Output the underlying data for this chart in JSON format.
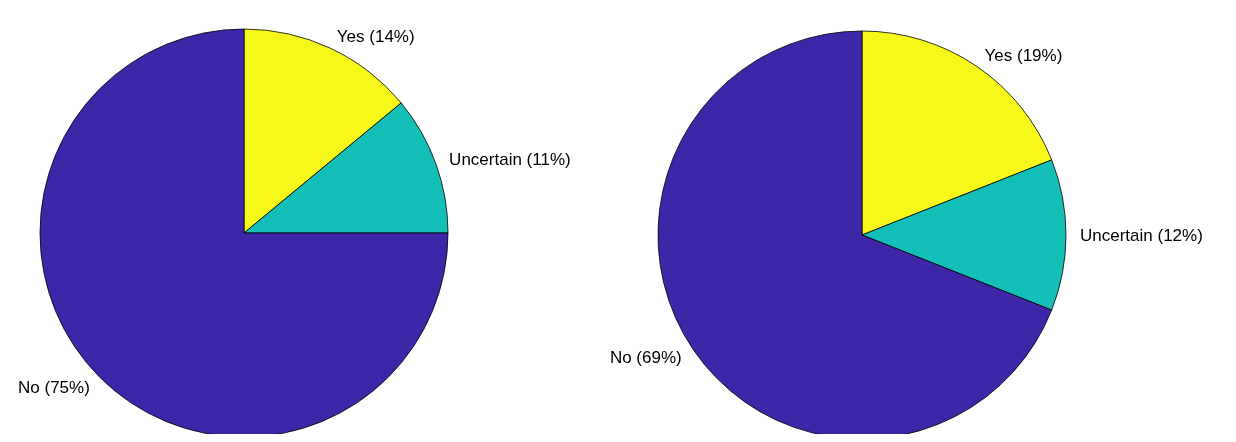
{
  "chart_data": [
    {
      "type": "pie",
      "categories": [
        "Yes (14%)",
        "Uncertain (11%)",
        "No (75%)"
      ],
      "values": [
        14,
        11,
        75
      ],
      "colors": [
        "#f7f719",
        "#14bfb8",
        "#3d26a8"
      ]
    },
    {
      "type": "pie",
      "categories": [
        "Yes (19%)",
        "Uncertain (12%)",
        "No (69%)"
      ],
      "values": [
        19,
        12,
        69
      ],
      "colors": [
        "#f7f719",
        "#14bfb8",
        "#3d26a8"
      ]
    }
  ]
}
